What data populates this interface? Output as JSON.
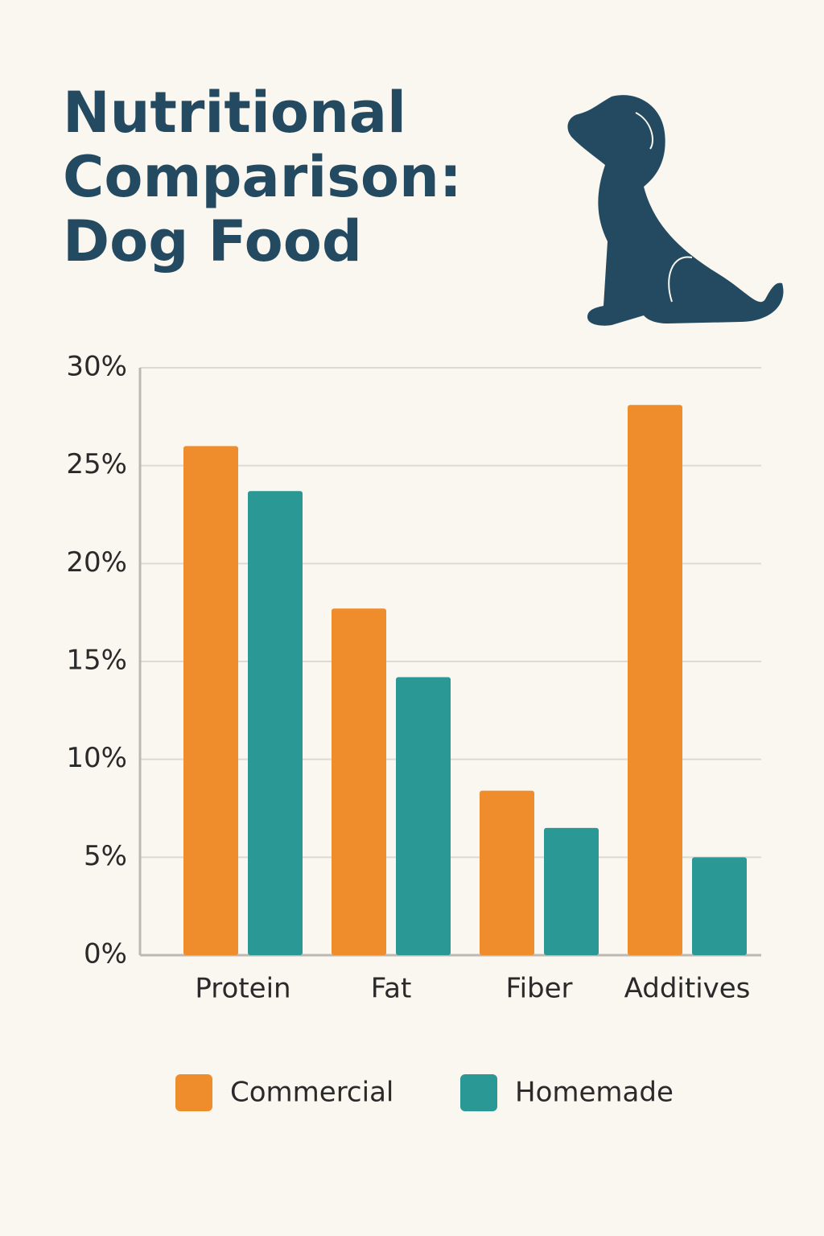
{
  "chart_data": {
    "type": "bar",
    "title": "Nutritional Comparison: Dog Food",
    "categories": [
      "Protein",
      "Fat",
      "Fiber",
      "Additives"
    ],
    "series": [
      {
        "name": "Commercial",
        "color": "#ef8c2c",
        "values": [
          26,
          17.7,
          8.4,
          28.1
        ]
      },
      {
        "name": "Homemade",
        "color": "#2a9894",
        "values": [
          23.7,
          14.2,
          6.5,
          5.0
        ]
      }
    ],
    "ylim": [
      0,
      30
    ],
    "yticks": [
      {
        "value": 0,
        "label": "0%"
      },
      {
        "value": 5,
        "label": "5%"
      },
      {
        "value": 10,
        "label": "10%"
      },
      {
        "value": 15,
        "label": "15%"
      },
      {
        "value": 20,
        "label": "20%"
      },
      {
        "value": 25,
        "label": "25%"
      },
      {
        "value": 30,
        "label": "30%"
      }
    ],
    "grid": true
  }
}
